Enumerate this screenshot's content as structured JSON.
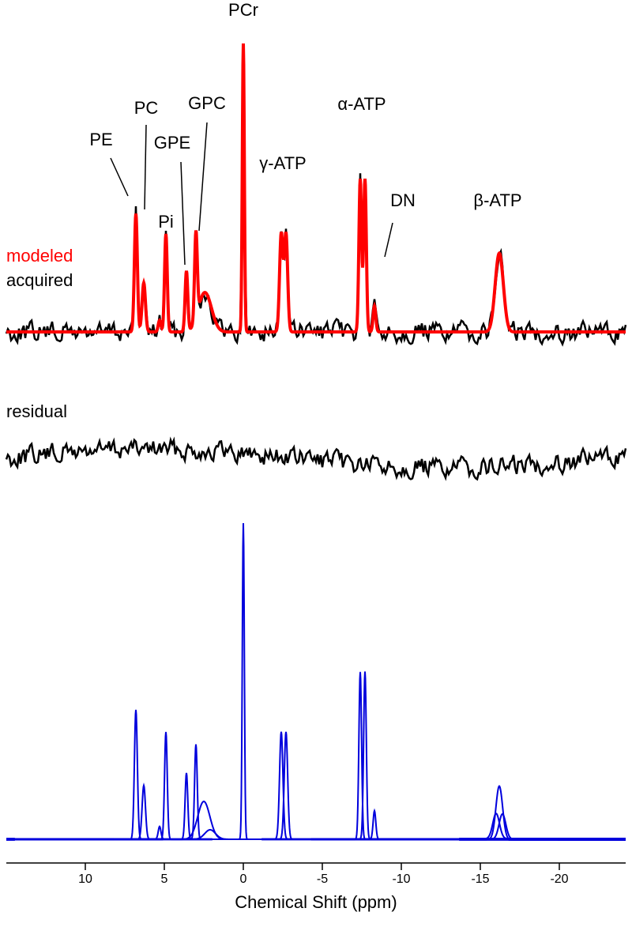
{
  "chart_data": {
    "type": "spectrum",
    "xlabel": "Chemical Shift (ppm)",
    "xlim": [
      15,
      -24.2
    ],
    "xticks": [
      10,
      5,
      0,
      -5,
      -10,
      -15,
      -20
    ],
    "modeled_label": "modeled",
    "modeled_color": "#ff0000",
    "acquired_label": "acquired",
    "acquired_color": "#000000",
    "residual_label": "residual",
    "component_color": "#0000dd",
    "annotations": [
      "PE",
      "PC",
      "GPE",
      "Pi",
      "GPC",
      "PCr",
      "γ-ATP",
      "α-ATP",
      "DN",
      "β-ATP"
    ],
    "components": [
      {
        "ppm": 6.8,
        "height": 41,
        "width": 0.22
      },
      {
        "ppm": 6.3,
        "height": 17,
        "width": 0.25
      },
      {
        "ppm": 5.3,
        "height": 4,
        "width": 0.2
      },
      {
        "ppm": 4.9,
        "height": 34,
        "width": 0.2
      },
      {
        "ppm": 3.6,
        "height": 21,
        "width": 0.2
      },
      {
        "ppm": 3.0,
        "height": 30,
        "width": 0.2
      },
      {
        "ppm": 2.5,
        "height": 12,
        "width": 0.9
      },
      {
        "ppm": 2.1,
        "height": 3,
        "width": 0.8
      },
      {
        "ppm": 0,
        "height": 100,
        "width": 0.15
      },
      {
        "ppm": -2.4,
        "height": 34,
        "width": 0.25
      },
      {
        "ppm": -2.7,
        "height": 34,
        "width": 0.25
      },
      {
        "ppm": -7.4,
        "height": 53,
        "width": 0.2
      },
      {
        "ppm": -7.7,
        "height": 53,
        "width": 0.2
      },
      {
        "ppm": -8.3,
        "height": 9,
        "width": 0.2
      },
      {
        "ppm": -16.2,
        "height": 17,
        "width": 0.5
      },
      {
        "ppm": -16.0,
        "height": 8,
        "width": 0.5
      },
      {
        "ppm": -16.4,
        "height": 8,
        "width": 0.5
      }
    ]
  }
}
